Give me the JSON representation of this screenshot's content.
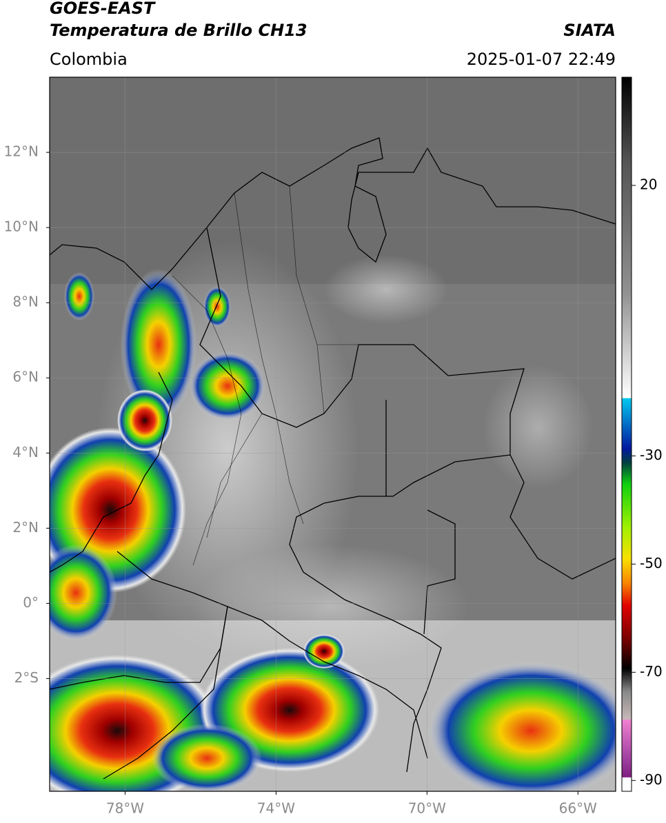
{
  "header": {
    "title_line1": "GOES-EAST",
    "title_line2": "Temperatura de Brillo CH13",
    "source": "SIATA",
    "region": "Colombia",
    "timestamp": "2025-01-07 22:49"
  },
  "map": {
    "xlim": [
      -80,
      -65
    ],
    "ylim": [
      -5,
      14
    ],
    "lat_ticks": [
      {
        "value": 12,
        "label": "12°N"
      },
      {
        "value": 10,
        "label": "10°N"
      },
      {
        "value": 8,
        "label": "8°N"
      },
      {
        "value": 6,
        "label": "6°N"
      },
      {
        "value": 4,
        "label": "4°N"
      },
      {
        "value": 2,
        "label": "2°N"
      },
      {
        "value": 0,
        "label": "0°"
      },
      {
        "value": -2,
        "label": "2°S"
      }
    ],
    "lon_ticks": [
      {
        "value": -78,
        "label": "78°W"
      },
      {
        "value": -74,
        "label": "74°W"
      },
      {
        "value": -70,
        "label": "70°W"
      },
      {
        "value": -66,
        "label": "66°W"
      }
    ]
  },
  "colorbar": {
    "clim": [
      -92,
      40
    ],
    "ticks": [
      20,
      -30,
      -50,
      -70,
      -90
    ]
  }
}
